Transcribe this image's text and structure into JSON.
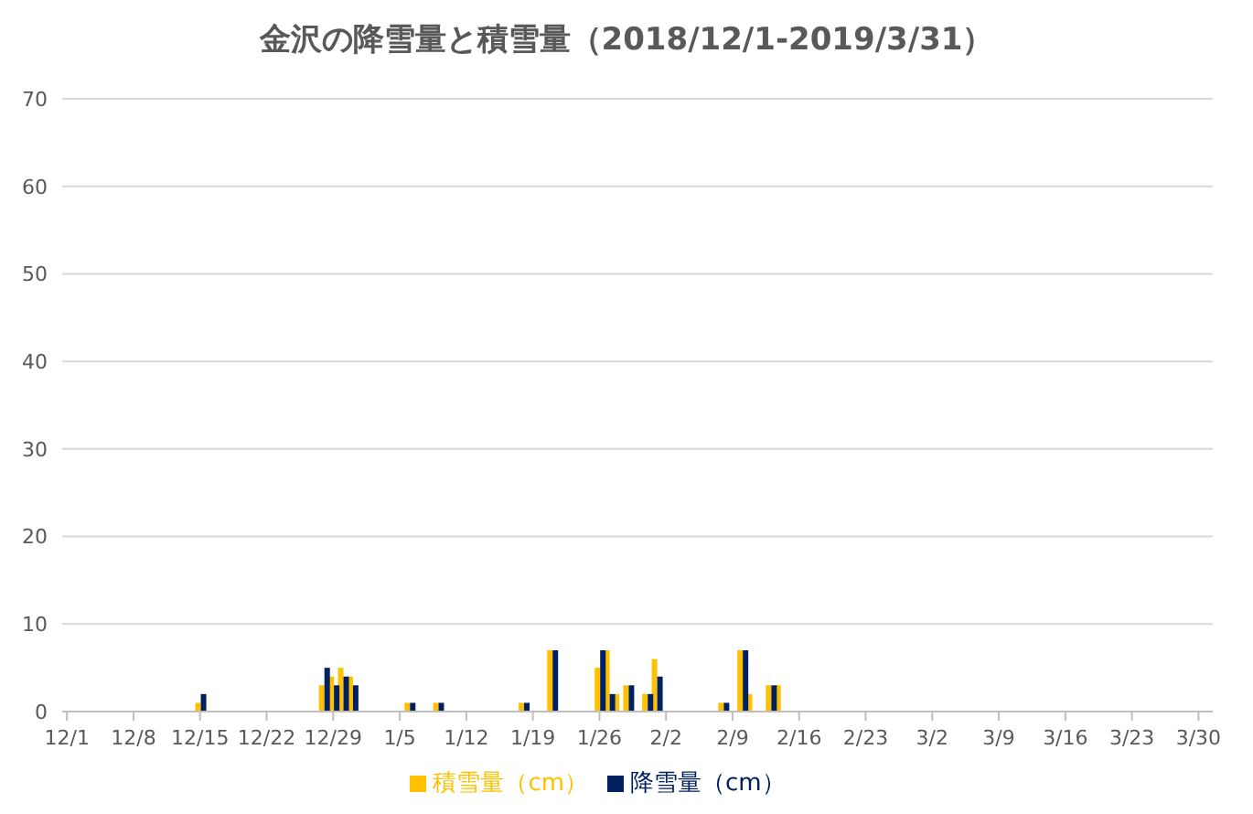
{
  "chart_data": {
    "type": "bar",
    "title": "金沢の降雪量と積雪量（2018/12/1-2019/3/31）",
    "categories": [
      "12/1",
      null,
      null,
      null,
      null,
      null,
      null,
      "12/8",
      null,
      null,
      null,
      null,
      null,
      null,
      "12/15",
      null,
      null,
      null,
      null,
      null,
      null,
      "12/22",
      null,
      null,
      null,
      null,
      null,
      null,
      "12/29",
      null,
      null,
      null,
      null,
      null,
      null,
      "1/5",
      null,
      null,
      null,
      null,
      null,
      null,
      "1/12",
      null,
      null,
      null,
      null,
      null,
      null,
      "1/19",
      null,
      null,
      null,
      null,
      null,
      null,
      "1/26",
      null,
      null,
      null,
      null,
      null,
      null,
      "2/2",
      null,
      null,
      null,
      null,
      null,
      null,
      "2/9",
      null,
      null,
      null,
      null,
      null,
      null,
      "2/16",
      null,
      null,
      null,
      null,
      null,
      null,
      "2/23",
      null,
      null,
      null,
      null,
      null,
      null,
      "3/2",
      null,
      null,
      null,
      null,
      null,
      null,
      "3/9",
      null,
      null,
      null,
      null,
      null,
      null,
      "3/16",
      null,
      null,
      null,
      null,
      null,
      null,
      "3/23",
      null,
      null,
      null,
      null,
      null,
      null,
      "3/30",
      null
    ],
    "series": [
      {
        "name": "積雪量（cm）",
        "color": "#ffc000",
        "values": [
          0,
          0,
          0,
          0,
          0,
          0,
          0,
          0,
          0,
          0,
          0,
          0,
          0,
          0,
          1,
          0,
          0,
          0,
          0,
          0,
          0,
          0,
          0,
          0,
          0,
          0,
          0,
          3,
          4,
          5,
          4,
          0,
          0,
          0,
          0,
          0,
          1,
          0,
          0,
          1,
          0,
          0,
          0,
          0,
          0,
          0,
          0,
          0,
          1,
          0,
          0,
          7,
          0,
          0,
          0,
          0,
          5,
          7,
          2,
          3,
          0,
          2,
          6,
          0,
          0,
          0,
          0,
          0,
          0,
          1,
          0,
          7,
          2,
          0,
          3,
          3,
          0,
          0,
          0,
          0,
          0,
          0,
          0,
          0,
          0,
          0,
          0,
          0,
          0,
          0,
          0,
          0,
          0,
          0,
          0,
          0,
          0,
          0,
          0,
          0,
          0,
          0,
          0,
          0,
          0,
          0,
          0,
          0,
          0,
          0,
          0,
          0,
          0,
          0,
          0,
          0,
          0,
          0,
          0,
          0,
          0
        ]
      },
      {
        "name": "降雪量（cm）",
        "color": "#002060",
        "values": [
          0,
          0,
          0,
          0,
          0,
          0,
          0,
          0,
          0,
          0,
          0,
          0,
          0,
          0,
          2,
          0,
          0,
          0,
          0,
          0,
          0,
          0,
          0,
          0,
          0,
          0,
          0,
          5,
          3,
          4,
          3,
          0,
          0,
          0,
          0,
          0,
          1,
          0,
          0,
          1,
          0,
          0,
          0,
          0,
          0,
          0,
          0,
          0,
          1,
          0,
          0,
          7,
          0,
          0,
          0,
          0,
          7,
          2,
          0,
          3,
          0,
          2,
          4,
          0,
          0,
          0,
          0,
          0,
          0,
          1,
          0,
          7,
          0,
          0,
          3,
          0,
          0,
          0,
          0,
          0,
          0,
          0,
          0,
          0,
          0,
          0,
          0,
          0,
          0,
          0,
          0,
          0,
          0,
          0,
          0,
          0,
          0,
          0,
          0,
          0,
          0,
          0,
          0,
          0,
          0,
          0,
          0,
          0,
          0,
          0,
          0,
          0,
          0,
          0,
          0,
          0,
          0,
          0,
          0,
          0,
          0
        ]
      }
    ],
    "ylim": [
      0,
      70
    ],
    "yticks": [
      0,
      10,
      20,
      30,
      40,
      50,
      60,
      70
    ],
    "grid": "y",
    "legend": "bottom"
  }
}
